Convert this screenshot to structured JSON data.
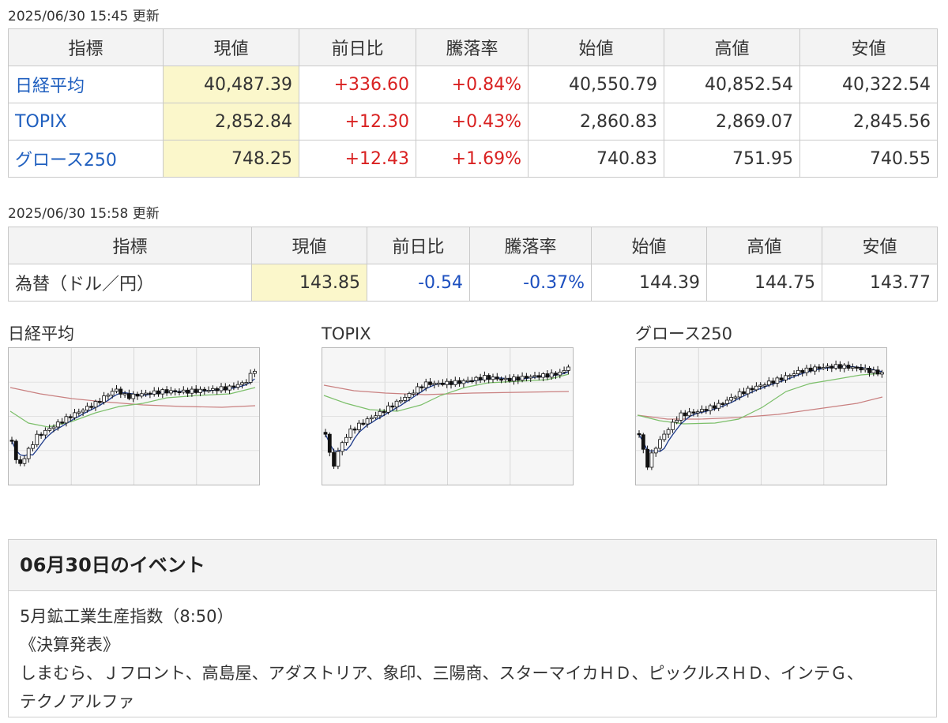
{
  "stocks": {
    "updated": "2025/06/30 15:45 更新",
    "headers": [
      "指標",
      "現値",
      "前日比",
      "騰落率",
      "始値",
      "高値",
      "安値"
    ],
    "rows": [
      {
        "name": "日経平均",
        "current": "40,487.39",
        "change": "+336.60",
        "rate": "+0.84%",
        "open": "40,550.79",
        "high": "40,852.54",
        "low": "40,322.54"
      },
      {
        "name": "TOPIX",
        "current": "2,852.84",
        "change": "+12.30",
        "rate": "+0.43%",
        "open": "2,860.83",
        "high": "2,869.07",
        "low": "2,845.56"
      },
      {
        "name": "グロース250",
        "current": "748.25",
        "change": "+12.43",
        "rate": "+1.69%",
        "open": "740.83",
        "high": "751.95",
        "low": "740.55"
      }
    ]
  },
  "fx": {
    "updated": "2025/06/30 15:58 更新",
    "headers": [
      "指標",
      "現値",
      "前日比",
      "騰落率",
      "始値",
      "高値",
      "安値"
    ],
    "rows": [
      {
        "name": "為替（ドル／円）",
        "current": "143.85",
        "change": "-0.54",
        "rate": "-0.37%",
        "open": "144.39",
        "high": "144.75",
        "low": "143.77"
      }
    ]
  },
  "charts": [
    {
      "title": "日経平均"
    },
    {
      "title": "TOPIX"
    },
    {
      "title": "グロース250"
    }
  ],
  "events": {
    "title": "06月30日のイベント",
    "lines": [
      "5月鉱工業生産指数（8:50）",
      "《決算発表》",
      "しまむら、Ｊフロント、高島屋、アダストリア、象印、三陽商、スターマイカＨＤ、ピックルスＨＤ、インテＧ、",
      "テクノアルファ"
    ]
  },
  "colors": {
    "up": "#d92121",
    "down": "#1c4fbf",
    "link": "#1f5fbf",
    "highlight": "#fbf7cb",
    "ma_short": "#1d3a8a",
    "ma_mid": "#7cbf6a",
    "ma_long": "#c98080"
  }
}
